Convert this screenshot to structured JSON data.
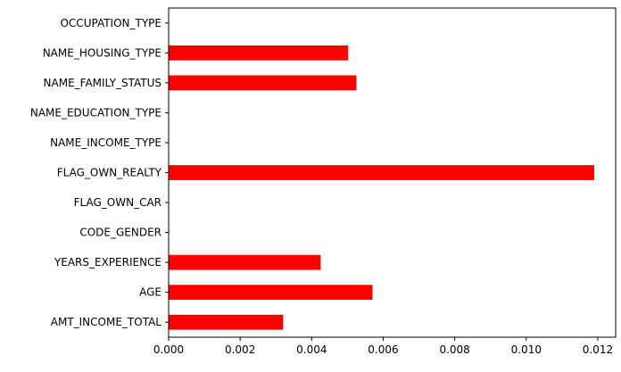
{
  "chart_data": {
    "type": "bar",
    "orientation": "horizontal",
    "categories": [
      "AMT_INCOME_TOTAL",
      "AGE",
      "YEARS_EXPERIENCE",
      "CODE_GENDER",
      "FLAG_OWN_CAR",
      "FLAG_OWN_REALTY",
      "NAME_INCOME_TYPE",
      "NAME_EDUCATION_TYPE",
      "NAME_FAMILY_STATUS",
      "NAME_HOUSING_TYPE",
      "OCCUPATION_TYPE"
    ],
    "values": [
      0.0032,
      0.0057,
      0.00425,
      0,
      0,
      0.0119,
      0,
      0,
      0.00525,
      0.00502,
      0
    ],
    "xlim": [
      0,
      0.0125
    ],
    "xticks": [
      0.0,
      0.002,
      0.004,
      0.006,
      0.008,
      0.01,
      0.012
    ],
    "xtick_labels": [
      "0.000",
      "0.002",
      "0.004",
      "0.006",
      "0.008",
      "0.010",
      "0.012"
    ],
    "bar_color": "#ff0000",
    "grid": false,
    "legend": false,
    "title": "",
    "xlabel": "",
    "ylabel": ""
  }
}
